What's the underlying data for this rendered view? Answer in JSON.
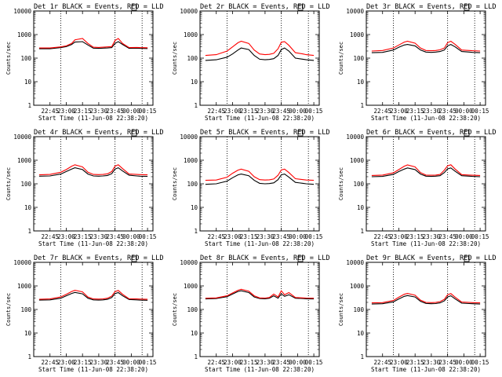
{
  "figure": {
    "background": "#ffffff",
    "axis_color": "#000000",
    "events_color": "#000000",
    "lld_color": "#ff0000"
  },
  "chart_data": [
    {
      "type": "line",
      "title": "Det 1r BLACK = Events, RED = LLD",
      "xlabel": "Start Time (11-Jun-08 22:38:20)",
      "ylabel": "Counts/sec",
      "yscale": "log",
      "ylim": [
        1,
        10000
      ],
      "x_ticks": [
        "22:45",
        "23:00",
        "23:15",
        "23:30",
        "23:45",
        "00:00",
        "00:15"
      ],
      "y_ticks": [
        "1",
        "10",
        "100",
        "1000",
        "10000"
      ],
      "x": [
        -25,
        -15,
        -5,
        0,
        5,
        8,
        15,
        20,
        25,
        30,
        34,
        38,
        42,
        45,
        48,
        52,
        58,
        65,
        68,
        75
      ],
      "series": [
        {
          "name": "Events",
          "color": "#000000",
          "values": [
            250,
            250,
            280,
            310,
            380,
            480,
            500,
            360,
            265,
            260,
            265,
            270,
            280,
            420,
            500,
            380,
            260,
            265,
            260,
            255
          ]
        },
        {
          "name": "LLD",
          "color": "#ff0000",
          "values": [
            270,
            270,
            300,
            330,
            420,
            600,
            680,
            420,
            290,
            285,
            290,
            300,
            310,
            560,
            680,
            420,
            280,
            285,
            280,
            275
          ]
        }
      ]
    },
    {
      "type": "line",
      "title": "Det 2r BLACK = Events, RED = LLD",
      "xlabel": "Start Time (11-Jun-08 22:38:20)",
      "ylabel": "Counts/sec",
      "yscale": "log",
      "ylim": [
        1,
        10000
      ],
      "x_ticks": [
        "22:45",
        "23:00",
        "23:15",
        "23:30",
        "23:45",
        "00:00",
        "00:15"
      ],
      "y_ticks": [
        "1",
        "10",
        "100",
        "1000",
        "10000"
      ],
      "x": [
        -25,
        -15,
        -5,
        0,
        5,
        8,
        15,
        20,
        25,
        30,
        34,
        38,
        42,
        45,
        48,
        52,
        58,
        65,
        68,
        75
      ],
      "series": [
        {
          "name": "Events",
          "color": "#000000",
          "values": [
            80,
            85,
            110,
            150,
            220,
            270,
            230,
            130,
            90,
            85,
            88,
            95,
            130,
            230,
            270,
            200,
            100,
            90,
            85,
            80
          ]
        },
        {
          "name": "LLD",
          "color": "#ff0000",
          "values": [
            130,
            140,
            200,
            300,
            450,
            520,
            420,
            220,
            150,
            140,
            145,
            160,
            250,
            470,
            500,
            350,
            170,
            150,
            140,
            130
          ]
        }
      ]
    },
    {
      "type": "line",
      "title": "Det 3r BLACK = Events, RED = LLD",
      "xlabel": "Start Time (11-Jun-08 22:38:20)",
      "ylabel": "Counts/sec",
      "yscale": "log",
      "ylim": [
        1,
        10000
      ],
      "x_ticks": [
        "22:45",
        "23:00",
        "23:15",
        "23:30",
        "23:45",
        "00:00",
        "00:15"
      ],
      "y_ticks": [
        "1",
        "10",
        "100",
        "1000",
        "10000"
      ],
      "x": [
        -25,
        -15,
        -5,
        0,
        5,
        8,
        15,
        20,
        25,
        30,
        34,
        38,
        42,
        45,
        48,
        52,
        58,
        65,
        68,
        75
      ],
      "series": [
        {
          "name": "Events",
          "color": "#000000",
          "values": [
            170,
            175,
            220,
            290,
            360,
            380,
            330,
            220,
            180,
            175,
            180,
            190,
            220,
            330,
            380,
            300,
            190,
            180,
            175,
            170
          ]
        },
        {
          "name": "LLD",
          "color": "#ff0000",
          "values": [
            200,
            210,
            270,
            360,
            480,
            520,
            430,
            270,
            210,
            205,
            210,
            225,
            270,
            450,
            520,
            380,
            220,
            210,
            205,
            200
          ]
        }
      ]
    },
    {
      "type": "line",
      "title": "Det 4r BLACK = Events, RED = LLD",
      "xlabel": "Start Time (11-Jun-08 22:38:20)",
      "ylabel": "Counts/sec",
      "yscale": "log",
      "ylim": [
        1,
        10000
      ],
      "x_ticks": [
        "22:45",
        "23:00",
        "23:15",
        "23:30",
        "23:45",
        "00:00",
        "00:15"
      ],
      "y_ticks": [
        "1",
        "10",
        "100",
        "1000",
        "10000"
      ],
      "x": [
        -25,
        -15,
        -5,
        0,
        5,
        8,
        15,
        20,
        25,
        30,
        34,
        38,
        42,
        45,
        48,
        52,
        58,
        65,
        68,
        75
      ],
      "series": [
        {
          "name": "Events",
          "color": "#000000",
          "values": [
            210,
            215,
            260,
            330,
            420,
            480,
            400,
            260,
            215,
            210,
            215,
            225,
            270,
            420,
            480,
            350,
            230,
            215,
            210,
            205
          ]
        },
        {
          "name": "LLD",
          "color": "#ff0000",
          "values": [
            240,
            250,
            310,
            400,
            560,
            640,
            520,
            310,
            250,
            245,
            250,
            265,
            330,
            560,
            640,
            440,
            260,
            250,
            245,
            240
          ]
        }
      ]
    },
    {
      "type": "line",
      "title": "Det 5r BLACK = Events, RED = LLD",
      "xlabel": "Start Time (11-Jun-08 22:38:20)",
      "ylabel": "Counts/sec",
      "yscale": "log",
      "ylim": [
        1,
        10000
      ],
      "x_ticks": [
        "22:45",
        "23:00",
        "23:15",
        "23:30",
        "23:45",
        "00:00",
        "00:15"
      ],
      "y_ticks": [
        "1",
        "10",
        "100",
        "1000",
        "10000"
      ],
      "x": [
        -25,
        -15,
        -5,
        0,
        5,
        8,
        15,
        20,
        25,
        30,
        34,
        38,
        42,
        45,
        48,
        52,
        58,
        65,
        68,
        75
      ],
      "series": [
        {
          "name": "Events",
          "color": "#000000",
          "values": [
            95,
            100,
            130,
            180,
            240,
            260,
            220,
            140,
            105,
            100,
            102,
            110,
            150,
            240,
            260,
            190,
            115,
            105,
            100,
            95
          ]
        },
        {
          "name": "LLD",
          "color": "#ff0000",
          "values": [
            140,
            145,
            190,
            280,
            380,
            420,
            340,
            200,
            150,
            145,
            148,
            160,
            230,
            390,
            420,
            300,
            165,
            150,
            145,
            140
          ]
        }
      ]
    },
    {
      "type": "line",
      "title": "Det 6r BLACK = Events, RED = LLD",
      "xlabel": "Start Time (11-Jun-08 22:38:20)",
      "ylabel": "Counts/sec",
      "yscale": "log",
      "ylim": [
        1,
        10000
      ],
      "x_ticks": [
        "22:45",
        "23:00",
        "23:15",
        "23:30",
        "23:45",
        "00:00",
        "00:15"
      ],
      "y_ticks": [
        "1",
        "10",
        "100",
        "1000",
        "10000"
      ],
      "x": [
        -25,
        -15,
        -5,
        0,
        5,
        8,
        15,
        20,
        25,
        30,
        34,
        38,
        42,
        45,
        48,
        52,
        58,
        65,
        68,
        75
      ],
      "series": [
        {
          "name": "Events",
          "color": "#000000",
          "values": [
            200,
            205,
            250,
            330,
            420,
            470,
            400,
            260,
            210,
            205,
            210,
            220,
            300,
            430,
            470,
            340,
            220,
            210,
            205,
            200
          ]
        },
        {
          "name": "LLD",
          "color": "#ff0000",
          "values": [
            225,
            235,
            290,
            400,
            560,
            630,
            520,
            300,
            235,
            230,
            235,
            250,
            380,
            580,
            640,
            420,
            245,
            235,
            230,
            225
          ]
        }
      ]
    },
    {
      "type": "line",
      "title": "Det 7r BLACK = Events, RED = LLD",
      "xlabel": "Start Time (11-Jun-08 22:38:20)",
      "ylabel": "Counts/sec",
      "yscale": "log",
      "ylim": [
        1,
        10000
      ],
      "x_ticks": [
        "22:45",
        "23:00",
        "23:15",
        "23:30",
        "23:45",
        "00:00",
        "00:15"
      ],
      "y_ticks": [
        "1",
        "10",
        "100",
        "1000",
        "10000"
      ],
      "x": [
        -25,
        -15,
        -5,
        0,
        5,
        8,
        15,
        20,
        25,
        30,
        34,
        38,
        42,
        45,
        48,
        52,
        58,
        65,
        68,
        75
      ],
      "series": [
        {
          "name": "Events",
          "color": "#000000",
          "values": [
            250,
            255,
            300,
            380,
            480,
            530,
            460,
            300,
            255,
            250,
            255,
            270,
            320,
            470,
            520,
            380,
            265,
            255,
            250,
            245
          ]
        },
        {
          "name": "LLD",
          "color": "#ff0000",
          "values": [
            270,
            280,
            340,
            440,
            580,
            650,
            560,
            340,
            280,
            275,
            280,
            300,
            370,
            570,
            640,
            440,
            285,
            280,
            275,
            270
          ]
        }
      ]
    },
    {
      "type": "line",
      "title": "Det 8r BLACK = Events, RED = LLD",
      "xlabel": "Start Time (11-Jun-08 22:38:20)",
      "ylabel": "Counts/sec",
      "yscale": "log",
      "ylim": [
        1,
        10000
      ],
      "x_ticks": [
        "22:45",
        "23:00",
        "23:15",
        "23:30",
        "23:45",
        "00:00",
        "00:15"
      ],
      "y_ticks": [
        "1",
        "10",
        "100",
        "1000",
        "10000"
      ],
      "x": [
        -25,
        -15,
        -5,
        0,
        5,
        8,
        15,
        20,
        25,
        30,
        34,
        38,
        42,
        45,
        48,
        52,
        58,
        65,
        68,
        75
      ],
      "series": [
        {
          "name": "Events",
          "color": "#000000",
          "values": [
            280,
            290,
            350,
            450,
            580,
            620,
            520,
            340,
            290,
            285,
            300,
            380,
            300,
            460,
            360,
            420,
            300,
            290,
            285,
            280
          ]
        },
        {
          "name": "LLD",
          "color": "#ff0000",
          "values": [
            300,
            310,
            380,
            500,
            650,
            720,
            600,
            380,
            310,
            305,
            320,
            450,
            340,
            620,
            420,
            520,
            320,
            310,
            305,
            300
          ]
        }
      ]
    },
    {
      "type": "line",
      "title": "Det 9r BLACK = Events, RED = LLD",
      "xlabel": "Start Time (11-Jun-08 22:38:20)",
      "ylabel": "Counts/sec",
      "yscale": "log",
      "ylim": [
        1,
        10000
      ],
      "x_ticks": [
        "22:45",
        "23:00",
        "23:15",
        "23:30",
        "23:45",
        "00:00",
        "00:15"
      ],
      "y_ticks": [
        "1",
        "10",
        "100",
        "1000",
        "10000"
      ],
      "x": [
        -25,
        -15,
        -5,
        0,
        5,
        8,
        15,
        20,
        25,
        30,
        34,
        38,
        42,
        45,
        48,
        52,
        58,
        65,
        68,
        75
      ],
      "series": [
        {
          "name": "Events",
          "color": "#000000",
          "values": [
            170,
            175,
            210,
            280,
            360,
            390,
            340,
            220,
            180,
            175,
            178,
            190,
            230,
            340,
            380,
            280,
            185,
            178,
            175,
            170
          ]
        },
        {
          "name": "LLD",
          "color": "#ff0000",
          "values": [
            190,
            195,
            240,
            330,
            440,
            480,
            400,
            250,
            200,
            195,
            198,
            215,
            270,
            420,
            470,
            330,
            205,
            198,
            195,
            190
          ]
        }
      ]
    }
  ]
}
